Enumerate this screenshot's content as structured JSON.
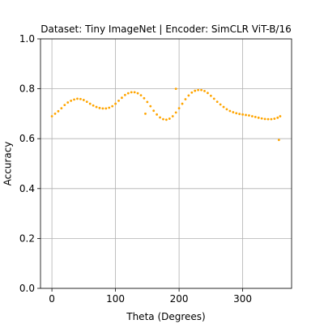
{
  "chart_data": {
    "type": "scatter",
    "title": "Dataset: Tiny ImageNet | Encoder: SimCLR ViT-B/16",
    "x_label": "Theta (Degrees)",
    "y_label": "Accuracy",
    "color": "#ffa500",
    "grid": true,
    "xlim": [
      -17.95,
      376.95
    ],
    "ylim": [
      0,
      1
    ],
    "xticks": [
      0,
      100,
      200,
      300
    ],
    "yticks": [
      {
        "value": 0,
        "label": "0.0"
      },
      {
        "value": 0.2,
        "label": "0.2"
      },
      {
        "value": 0.4,
        "label": "0.4"
      },
      {
        "value": 0.6,
        "label": "0.6"
      },
      {
        "value": 0.8,
        "label": "0.8"
      },
      {
        "value": 1,
        "label": "1.0"
      }
    ],
    "x": [
      0,
      5,
      10,
      15,
      20,
      25,
      30,
      35,
      40,
      45,
      50,
      55,
      60,
      65,
      70,
      75,
      80,
      85,
      90,
      95,
      100,
      105,
      110,
      115,
      120,
      125,
      130,
      135,
      140,
      145,
      150,
      155,
      160,
      165,
      170,
      175,
      180,
      185,
      190,
      195,
      200,
      205,
      210,
      215,
      220,
      225,
      230,
      235,
      240,
      245,
      250,
      255,
      260,
      265,
      270,
      275,
      280,
      285,
      290,
      295,
      300,
      305,
      310,
      315,
      320,
      325,
      330,
      335,
      340,
      345,
      350,
      355,
      359,
      147,
      195,
      357
    ],
    "values": [
      0.69,
      0.7,
      0.71,
      0.722,
      0.735,
      0.745,
      0.752,
      0.757,
      0.76,
      0.759,
      0.755,
      0.748,
      0.74,
      0.733,
      0.727,
      0.723,
      0.721,
      0.721,
      0.724,
      0.73,
      0.74,
      0.752,
      0.764,
      0.775,
      0.782,
      0.786,
      0.786,
      0.782,
      0.774,
      0.762,
      0.747,
      0.73,
      0.712,
      0.697,
      0.685,
      0.678,
      0.676,
      0.68,
      0.69,
      0.705,
      0.722,
      0.74,
      0.758,
      0.773,
      0.785,
      0.792,
      0.795,
      0.795,
      0.791,
      0.783,
      0.772,
      0.76,
      0.748,
      0.737,
      0.727,
      0.718,
      0.711,
      0.706,
      0.702,
      0.699,
      0.697,
      0.695,
      0.693,
      0.69,
      0.687,
      0.684,
      0.681,
      0.679,
      0.678,
      0.678,
      0.68,
      0.684,
      0.69,
      0.7,
      0.8,
      0.595
    ]
  }
}
